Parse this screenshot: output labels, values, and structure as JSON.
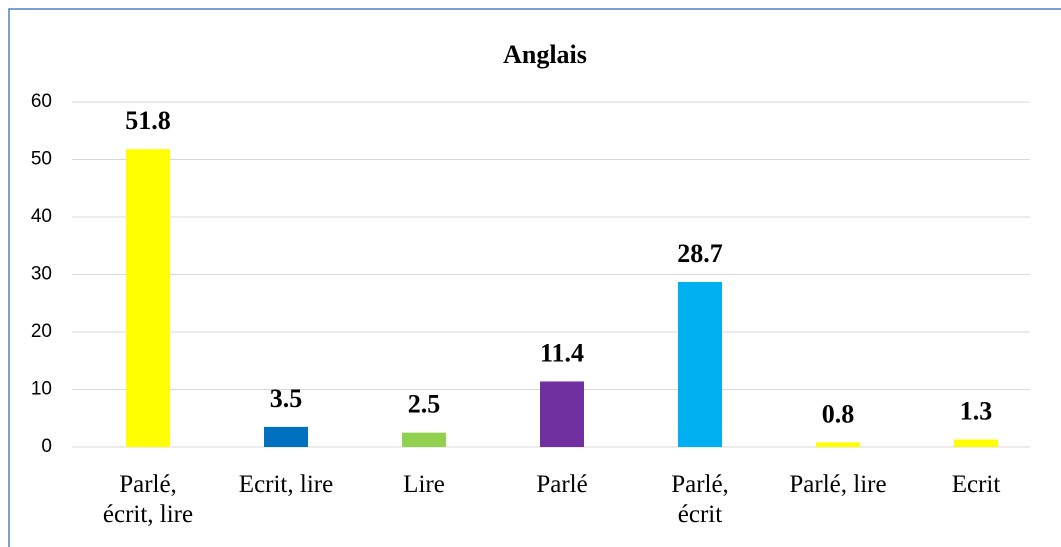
{
  "chart_data": {
    "type": "bar",
    "title": "Anglais",
    "categories": [
      "Parlé,\nécrit, lire",
      "Ecrit, lire",
      "Lire",
      "Parlé",
      "Parlé,\nécrit",
      "Parlé, lire",
      "Ecrit"
    ],
    "values": [
      51.8,
      3.5,
      2.5,
      11.4,
      28.7,
      0.8,
      1.3
    ],
    "colors": [
      "#ffff00",
      "#0070c0",
      "#92d050",
      "#7030a0",
      "#00b0f0",
      "#ffff00",
      "#ffff00"
    ],
    "ylim": [
      0,
      60
    ],
    "yticks": [
      0,
      10,
      20,
      30,
      40,
      50,
      60
    ],
    "grid": true
  }
}
